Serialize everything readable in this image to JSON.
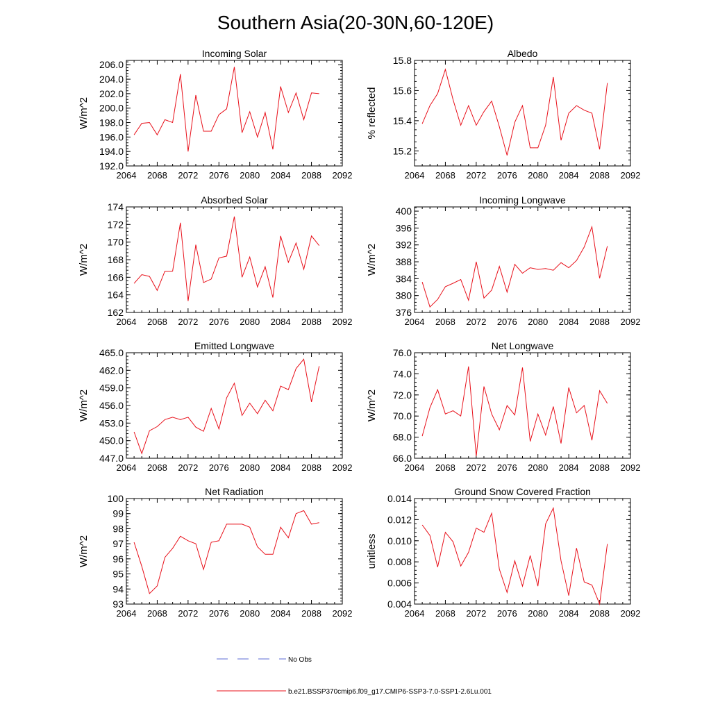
{
  "figure": {
    "title": "Southern Asia(20-30N,60-120E)"
  },
  "legend": {
    "obs_label": "No Obs",
    "obs_color": "#5b6bd6",
    "model_label": "b.e21.BSSP370cmip6.f09_g17.CMIP6-SSP3-7.0-SSP1-2.6Lu.001",
    "model_color": "#e8101a"
  },
  "chart_data": [
    {
      "type": "line",
      "title": "Incoming Solar",
      "ylabel": "W/m^2",
      "xlabel": "",
      "xlim": [
        2064,
        2092
      ],
      "xticks": [
        2064,
        2068,
        2072,
        2076,
        2080,
        2084,
        2088,
        2092
      ],
      "ylim": [
        192,
        206.6
      ],
      "yticks": [
        192,
        194,
        196,
        198,
        200,
        202,
        204,
        206
      ],
      "ytick_labels": [
        "192.0",
        "194.0",
        "196.0",
        "198.0",
        "200.0",
        "202.0",
        "204.0",
        "206.0"
      ],
      "x": [
        2065,
        2066,
        2067,
        2068,
        2069,
        2070,
        2071,
        2072,
        2073,
        2074,
        2075,
        2076,
        2077,
        2078,
        2079,
        2080,
        2081,
        2082,
        2083,
        2084,
        2085,
        2086,
        2087,
        2088,
        2089
      ],
      "series": [
        {
          "values": [
            196.3,
            197.9,
            198.0,
            196.3,
            198.4,
            198.0,
            204.7,
            194.0,
            201.8,
            196.8,
            196.8,
            199.1,
            199.9,
            205.7,
            196.6,
            199.5,
            196.0,
            199.4,
            194.3,
            203.0,
            199.4,
            202.1,
            198.4,
            202.1,
            202.0
          ]
        }
      ]
    },
    {
      "type": "line",
      "title": "Albedo",
      "ylabel": "% reflected",
      "xlabel": "",
      "xlim": [
        2064,
        2092
      ],
      "xticks": [
        2064,
        2068,
        2072,
        2076,
        2080,
        2084,
        2088,
        2092
      ],
      "ylim": [
        15.1,
        15.8
      ],
      "yticks": [
        15.2,
        15.4,
        15.6,
        15.8
      ],
      "ytick_labels": [
        "15.2",
        "15.4",
        "15.6",
        "15.8"
      ],
      "x": [
        2065,
        2066,
        2067,
        2068,
        2069,
        2070,
        2071,
        2072,
        2073,
        2074,
        2075,
        2076,
        2077,
        2078,
        2079,
        2080,
        2081,
        2082,
        2083,
        2084,
        2085,
        2086,
        2087,
        2088,
        2089
      ],
      "series": [
        {
          "values": [
            15.38,
            15.5,
            15.58,
            15.74,
            15.54,
            15.37,
            15.5,
            15.37,
            15.46,
            15.53,
            15.36,
            15.17,
            15.39,
            15.5,
            15.22,
            15.22,
            15.37,
            15.69,
            15.27,
            15.45,
            15.5,
            15.47,
            15.45,
            15.21,
            15.65
          ]
        }
      ]
    },
    {
      "type": "line",
      "title": "Absorbed Solar",
      "ylabel": "W/m^2",
      "xlabel": "",
      "xlim": [
        2064,
        2092
      ],
      "xticks": [
        2064,
        2068,
        2072,
        2076,
        2080,
        2084,
        2088,
        2092
      ],
      "ylim": [
        162,
        174
      ],
      "yticks": [
        162,
        164,
        166,
        168,
        170,
        172,
        174
      ],
      "ytick_labels": [
        "162",
        "164",
        "166",
        "168",
        "170",
        "172",
        "174"
      ],
      "x": [
        2065,
        2066,
        2067,
        2068,
        2069,
        2070,
        2071,
        2072,
        2073,
        2074,
        2075,
        2076,
        2077,
        2078,
        2079,
        2080,
        2081,
        2082,
        2083,
        2084,
        2085,
        2086,
        2087,
        2088,
        2089
      ],
      "series": [
        {
          "values": [
            165.3,
            166.3,
            166.1,
            164.5,
            166.7,
            166.7,
            172.2,
            163.3,
            169.7,
            165.4,
            165.8,
            168.2,
            168.4,
            172.9,
            166.0,
            168.3,
            164.9,
            167.2,
            163.7,
            170.7,
            167.7,
            169.9,
            166.9,
            170.7,
            169.6
          ]
        }
      ]
    },
    {
      "type": "line",
      "title": "Incoming Longwave",
      "ylabel": "W/m^2",
      "xlabel": "",
      "xlim": [
        2064,
        2092
      ],
      "xticks": [
        2064,
        2068,
        2072,
        2076,
        2080,
        2084,
        2088,
        2092
      ],
      "ylim": [
        376,
        401
      ],
      "yticks": [
        376,
        380,
        384,
        388,
        392,
        396,
        400
      ],
      "ytick_labels": [
        "376",
        "380",
        "384",
        "388",
        "392",
        "396",
        "400"
      ],
      "x": [
        2065,
        2066,
        2067,
        2068,
        2069,
        2070,
        2071,
        2072,
        2073,
        2074,
        2075,
        2076,
        2077,
        2078,
        2079,
        2080,
        2081,
        2082,
        2083,
        2084,
        2085,
        2086,
        2087,
        2088,
        2089
      ],
      "series": [
        {
          "values": [
            383.2,
            377.3,
            379.1,
            382.1,
            382.9,
            383.8,
            378.9,
            388.0,
            379.4,
            381.3,
            386.9,
            380.8,
            387.4,
            385.3,
            386.6,
            386.2,
            386.4,
            386.0,
            387.8,
            386.6,
            388.3,
            391.5,
            396.3,
            384.1,
            391.7
          ]
        }
      ]
    },
    {
      "type": "line",
      "title": "Emitted Longwave",
      "ylabel": "W/m^2",
      "xlabel": "",
      "xlim": [
        2064,
        2092
      ],
      "xticks": [
        2064,
        2068,
        2072,
        2076,
        2080,
        2084,
        2088,
        2092
      ],
      "ylim": [
        447,
        465
      ],
      "yticks": [
        447,
        450,
        453,
        456,
        459,
        462,
        465
      ],
      "ytick_labels": [
        "447.0",
        "450.0",
        "453.0",
        "456.0",
        "459.0",
        "462.0",
        "465.0"
      ],
      "x": [
        2065,
        2066,
        2067,
        2068,
        2069,
        2070,
        2071,
        2072,
        2073,
        2074,
        2075,
        2076,
        2077,
        2078,
        2079,
        2080,
        2081,
        2082,
        2083,
        2084,
        2085,
        2086,
        2087,
        2088,
        2089
      ],
      "series": [
        {
          "values": [
            451.5,
            447.8,
            451.7,
            452.4,
            453.6,
            454.0,
            453.6,
            454.0,
            452.3,
            451.6,
            455.5,
            452.0,
            457.3,
            459.8,
            454.3,
            456.4,
            454.6,
            456.9,
            455.1,
            459.3,
            458.7,
            462.3,
            463.9,
            456.6,
            462.7
          ]
        }
      ]
    },
    {
      "type": "line",
      "title": "Net Longwave",
      "ylabel": "W/m^2",
      "xlabel": "",
      "xlim": [
        2064,
        2092
      ],
      "xticks": [
        2064,
        2068,
        2072,
        2076,
        2080,
        2084,
        2088,
        2092
      ],
      "ylim": [
        66,
        76
      ],
      "yticks": [
        66,
        68,
        70,
        72,
        74,
        76
      ],
      "ytick_labels": [
        "66.0",
        "68.0",
        "70.0",
        "72.0",
        "74.0",
        "76.0"
      ],
      "x": [
        2065,
        2066,
        2067,
        2068,
        2069,
        2070,
        2071,
        2072,
        2073,
        2074,
        2075,
        2076,
        2077,
        2078,
        2079,
        2080,
        2081,
        2082,
        2083,
        2084,
        2085,
        2086,
        2087,
        2088,
        2089
      ],
      "series": [
        {
          "values": [
            68.1,
            70.8,
            72.5,
            70.2,
            70.5,
            70.0,
            74.7,
            66.2,
            72.8,
            70.2,
            68.7,
            71.0,
            70.1,
            74.6,
            67.6,
            70.2,
            68.2,
            70.9,
            67.4,
            72.7,
            70.3,
            71.0,
            67.7,
            72.4,
            71.2
          ]
        }
      ]
    },
    {
      "type": "line",
      "title": "Net Radiation",
      "ylabel": "W/m^2",
      "xlabel": "",
      "xlim": [
        2064,
        2092
      ],
      "xticks": [
        2064,
        2068,
        2072,
        2076,
        2080,
        2084,
        2088,
        2092
      ],
      "ylim": [
        93,
        100
      ],
      "yticks": [
        93,
        94,
        95,
        96,
        97,
        98,
        99,
        100
      ],
      "ytick_labels": [
        "93",
        "94",
        "95",
        "96",
        "97",
        "98",
        "99",
        "100"
      ],
      "x": [
        2065,
        2066,
        2067,
        2068,
        2069,
        2070,
        2071,
        2072,
        2073,
        2074,
        2075,
        2076,
        2077,
        2078,
        2079,
        2080,
        2081,
        2082,
        2083,
        2084,
        2085,
        2086,
        2087,
        2088,
        2089
      ],
      "series": [
        {
          "values": [
            97.1,
            95.5,
            93.7,
            94.2,
            96.1,
            96.7,
            97.5,
            97.2,
            97.0,
            95.3,
            97.1,
            97.2,
            98.3,
            98.3,
            98.3,
            98.1,
            96.8,
            96.3,
            96.3,
            98.1,
            97.4,
            99.0,
            99.2,
            98.3,
            98.4
          ]
        }
      ]
    },
    {
      "type": "line",
      "title": "Ground Snow Covered Fraction",
      "ylabel": "unitless",
      "xlabel": "",
      "xlim": [
        2064,
        2092
      ],
      "xticks": [
        2064,
        2068,
        2072,
        2076,
        2080,
        2084,
        2088,
        2092
      ],
      "ylim": [
        0.004,
        0.014
      ],
      "yticks": [
        0.004,
        0.006,
        0.008,
        0.01,
        0.012,
        0.014
      ],
      "ytick_labels": [
        "0.004",
        "0.006",
        "0.008",
        "0.010",
        "0.012",
        "0.014"
      ],
      "x": [
        2065,
        2066,
        2067,
        2068,
        2069,
        2070,
        2071,
        2072,
        2073,
        2074,
        2075,
        2076,
        2077,
        2078,
        2079,
        2080,
        2081,
        2082,
        2083,
        2084,
        2085,
        2086,
        2087,
        2088,
        2089
      ],
      "series": [
        {
          "values": [
            0.0115,
            0.0105,
            0.0075,
            0.0108,
            0.0099,
            0.0076,
            0.0089,
            0.0112,
            0.0108,
            0.0126,
            0.0073,
            0.0051,
            0.0081,
            0.0057,
            0.0086,
            0.0057,
            0.0116,
            0.0131,
            0.0081,
            0.0048,
            0.0093,
            0.0061,
            0.0058,
            0.004,
            0.0097
          ]
        }
      ]
    }
  ]
}
